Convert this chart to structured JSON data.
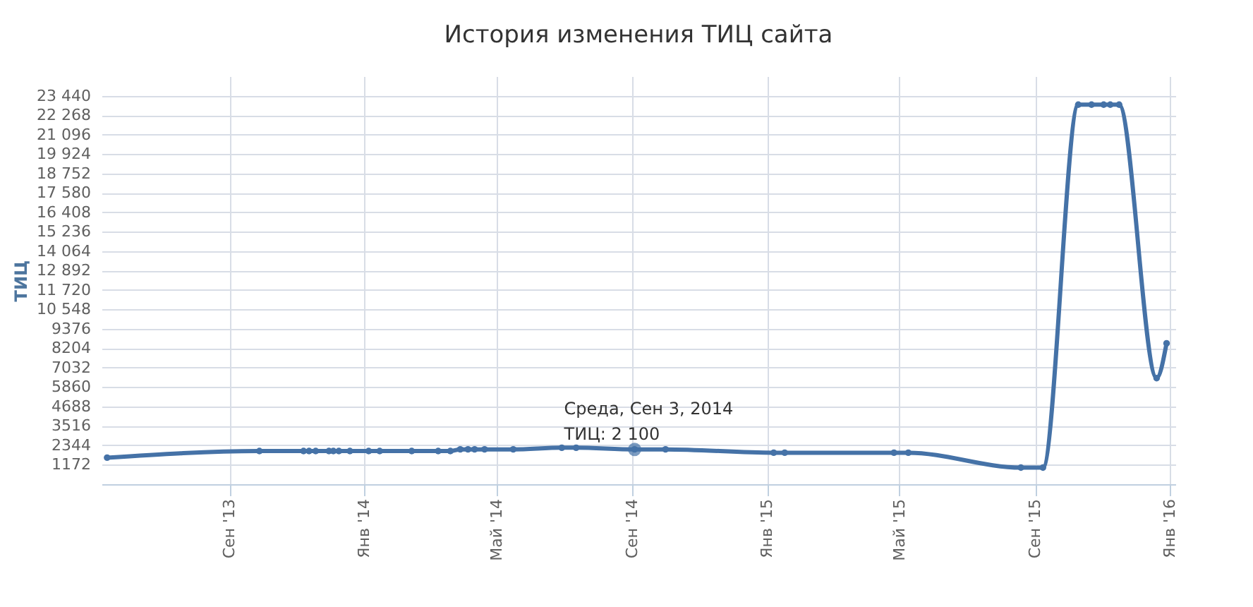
{
  "chart_data": {
    "type": "line",
    "title": "История изменения ТИЦ сайта",
    "ylabel": "ТИЦ",
    "x": [
      "2013-05-13",
      "2013-09-28",
      "2013-11-07",
      "2013-11-12",
      "2013-11-18",
      "2013-11-30",
      "2013-12-04",
      "2013-12-09",
      "2013-12-19",
      "2014-01-05",
      "2014-01-15",
      "2014-02-13",
      "2014-03-09",
      "2014-03-20",
      "2014-03-29",
      "2014-04-05",
      "2014-04-11",
      "2014-04-20",
      "2014-05-16",
      "2014-06-29",
      "2014-07-12",
      "2014-09-03",
      "2014-10-01",
      "2015-01-07",
      "2015-01-17",
      "2015-04-26",
      "2015-05-09",
      "2015-08-19",
      "2015-09-08",
      "2015-10-10",
      "2015-10-22",
      "2015-11-02",
      "2015-11-08",
      "2015-11-16",
      "2015-12-20",
      "2015-12-29"
    ],
    "series": [
      {
        "color": "#4572a7",
        "values": [
          1600,
          2000,
          2000,
          2000,
          2000,
          2000,
          2000,
          2000,
          2000,
          2000,
          2000,
          2000,
          2000,
          2000,
          2100,
          2100,
          2100,
          2100,
          2100,
          2200,
          2200,
          2100,
          2100,
          1900,
          1900,
          1900,
          1900,
          1000,
          1000,
          22900,
          22900,
          22900,
          22900,
          22900,
          6400,
          8500
        ]
      }
    ],
    "annotations": [
      {
        "text": "Среда, Сен 3, 2014\nТИЦ: 2 100",
        "x": "2014-09-03",
        "y": 2100
      }
    ],
    "xlim": [
      "2013-05-08",
      "2016-01-06"
    ],
    "xticks": [
      {
        "value": "2013-09-01",
        "label": "Сен '13"
      },
      {
        "value": "2014-01-01",
        "label": "Янв '14"
      },
      {
        "value": "2014-05-01",
        "label": "Май '14"
      },
      {
        "value": "2014-09-01",
        "label": "Сен '14"
      },
      {
        "value": "2015-01-01",
        "label": "Янв '15"
      },
      {
        "value": "2015-05-01",
        "label": "Май '15"
      },
      {
        "value": "2015-09-01",
        "label": "Сен '15"
      },
      {
        "value": "2016-01-01",
        "label": "Янв '16"
      }
    ],
    "ylim": [
      0,
      24612
    ],
    "yticks": [
      1172,
      2344,
      3516,
      4688,
      5860,
      7032,
      8204,
      9376,
      {
        "value": 10548,
        "label": "10 548"
      },
      {
        "value": 11720,
        "label": "11 720"
      },
      {
        "value": 12892,
        "label": "12 892"
      },
      {
        "value": 14064,
        "label": "14 064"
      },
      {
        "value": 15236,
        "label": "15 236"
      },
      {
        "value": 16408,
        "label": "16 408"
      },
      {
        "value": 17580,
        "label": "17 580"
      },
      {
        "value": 18752,
        "label": "18 752"
      },
      {
        "value": 19924,
        "label": "19 924"
      },
      {
        "value": 21096,
        "label": "21 096"
      },
      {
        "value": 22268,
        "label": "22 268"
      },
      {
        "value": 23440,
        "label": "23 440"
      }
    ],
    "grid": true,
    "marker": "circle",
    "line_style": "solid",
    "legend": false
  }
}
